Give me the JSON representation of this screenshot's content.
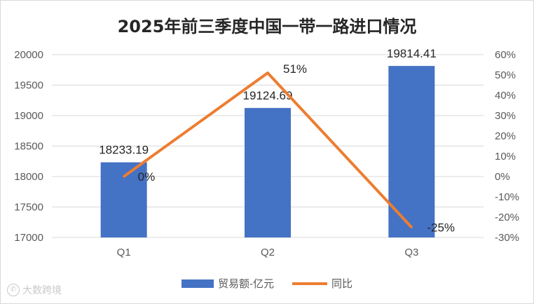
{
  "chart_data": {
    "type": "bar",
    "title": "2025年前三季度中国一带一路进口情况",
    "categories": [
      "Q1",
      "Q2",
      "Q3"
    ],
    "series": [
      {
        "name": "贸易额-亿元",
        "type": "bar",
        "axis": "left",
        "values": [
          18233.19,
          19124.69,
          19814.41
        ],
        "labels": [
          "18233.19",
          "19124.69",
          "19814.41"
        ]
      },
      {
        "name": "同比",
        "type": "line",
        "axis": "right",
        "values": [
          0,
          51,
          -25
        ],
        "labels": [
          "0%",
          "51%",
          "-25%"
        ]
      }
    ],
    "y_left": {
      "ylim": [
        17000,
        20000
      ],
      "ticks": [
        "17000",
        "17500",
        "18000",
        "18500",
        "19000",
        "19500",
        "20000"
      ]
    },
    "y_right": {
      "ylim": [
        -30,
        60
      ],
      "unit": "%",
      "ticks": [
        "-30%",
        "-20%",
        "-10%",
        "0%",
        "10%",
        "20%",
        "30%",
        "40%",
        "50%",
        "60%"
      ]
    },
    "grid": true,
    "legend_position": "bottom",
    "colors": {
      "bar": "#4472C4",
      "line": "#ED7D31",
      "grid": "#d9d9d9"
    }
  },
  "watermark": {
    "icon": "chat-bubble-icon",
    "text": "大数跨境"
  }
}
